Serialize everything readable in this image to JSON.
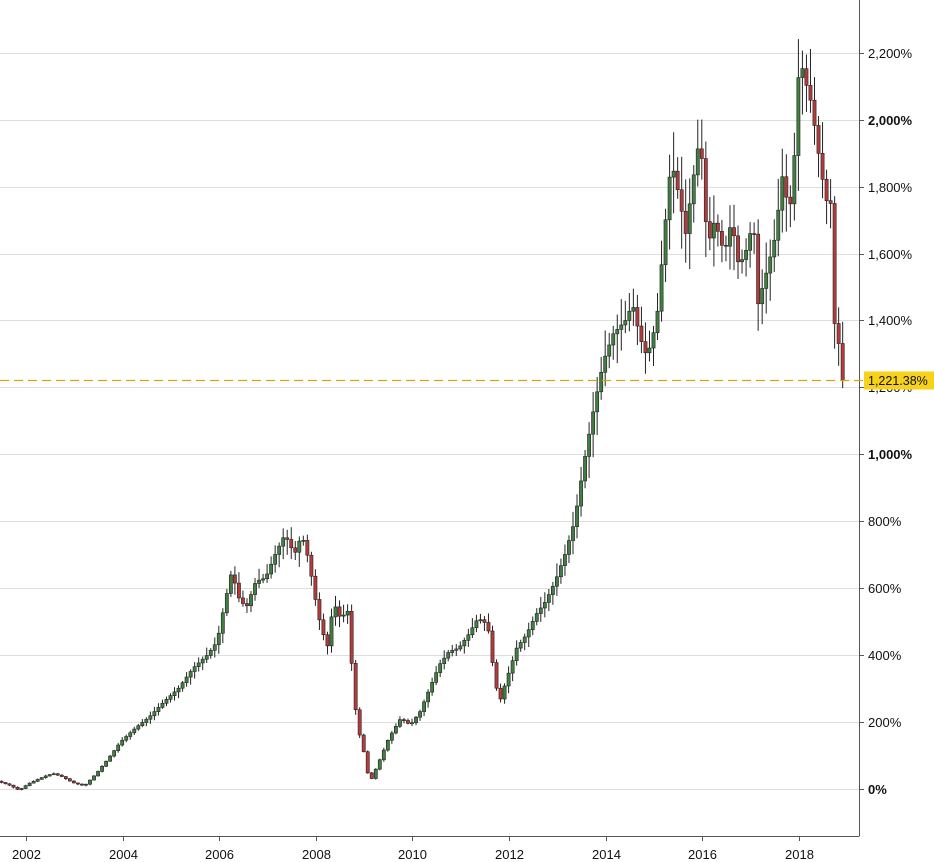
{
  "chart_data": {
    "type": "candlestick",
    "title": "",
    "xlabel": "",
    "ylabel": "",
    "x_axis": {
      "type": "time",
      "range": [
        2001.45,
        2019.4
      ],
      "tick_values": [
        2002,
        2004,
        2006,
        2008,
        2010,
        2012,
        2014,
        2016,
        2018
      ],
      "tick_labels": [
        "2002",
        "2004",
        "2006",
        "2008",
        "2010",
        "2012",
        "2014",
        "2016",
        "2018"
      ]
    },
    "y_axis": {
      "unit": "%",
      "side": "right",
      "range": [
        -150,
        2350
      ],
      "tick_values": [
        0,
        200,
        400,
        600,
        800,
        1000,
        1200,
        1400,
        1600,
        1800,
        2000,
        2200
      ],
      "tick_labels": [
        "0%",
        "200%",
        "400%",
        "600%",
        "800%",
        "1,000%",
        "1,200%",
        "1,400%",
        "1,600%",
        "1,800%",
        "2,000%",
        "2,200%"
      ],
      "bold_ticks": [
        0,
        1000,
        2000
      ]
    },
    "grid": "horizontal",
    "last_value": 1221.38,
    "last_value_label": "1,221.38%",
    "colors": {
      "up": "#3f7f3f",
      "down": "#b53a3a",
      "wick": "#222222",
      "last_line": "#d4a514",
      "last_label_bg": "#f7d21a",
      "grid": "#dedede"
    },
    "anchors": [
      [
        2001.45,
        22
      ],
      [
        2001.7,
        10
      ],
      [
        2001.9,
        -5
      ],
      [
        2002.1,
        15
      ],
      [
        2002.4,
        35
      ],
      [
        2002.6,
        45
      ],
      [
        2002.8,
        35
      ],
      [
        2003.0,
        18
      ],
      [
        2003.25,
        8
      ],
      [
        2003.5,
        45
      ],
      [
        2003.8,
        100
      ],
      [
        2004.0,
        140
      ],
      [
        2004.3,
        180
      ],
      [
        2004.6,
        215
      ],
      [
        2004.9,
        260
      ],
      [
        2005.2,
        300
      ],
      [
        2005.5,
        360
      ],
      [
        2005.8,
        400
      ],
      [
        2006.0,
        440
      ],
      [
        2006.15,
        550
      ],
      [
        2006.3,
        650
      ],
      [
        2006.45,
        570
      ],
      [
        2006.6,
        540
      ],
      [
        2006.8,
        620
      ],
      [
        2007.0,
        630
      ],
      [
        2007.2,
        700
      ],
      [
        2007.4,
        760
      ],
      [
        2007.6,
        700
      ],
      [
        2007.75,
        760
      ],
      [
        2007.9,
        680
      ],
      [
        2008.0,
        590
      ],
      [
        2008.15,
        480
      ],
      [
        2008.3,
        420
      ],
      [
        2008.4,
        560
      ],
      [
        2008.55,
        510
      ],
      [
        2008.7,
        530
      ],
      [
        2008.75,
        430
      ],
      [
        2008.9,
        180
      ],
      [
        2009.0,
        140
      ],
      [
        2009.1,
        50
      ],
      [
        2009.2,
        30
      ],
      [
        2009.35,
        80
      ],
      [
        2009.55,
        150
      ],
      [
        2009.8,
        210
      ],
      [
        2010.0,
        190
      ],
      [
        2010.2,
        230
      ],
      [
        2010.4,
        300
      ],
      [
        2010.6,
        370
      ],
      [
        2010.8,
        410
      ],
      [
        2011.0,
        420
      ],
      [
        2011.2,
        460
      ],
      [
        2011.4,
        510
      ],
      [
        2011.6,
        490
      ],
      [
        2011.75,
        320
      ],
      [
        2011.85,
        260
      ],
      [
        2012.0,
        330
      ],
      [
        2012.2,
        420
      ],
      [
        2012.4,
        460
      ],
      [
        2012.6,
        520
      ],
      [
        2012.8,
        560
      ],
      [
        2013.0,
        620
      ],
      [
        2013.2,
        700
      ],
      [
        2013.4,
        800
      ],
      [
        2013.6,
        980
      ],
      [
        2013.8,
        1140
      ],
      [
        2014.0,
        1280
      ],
      [
        2014.2,
        1360
      ],
      [
        2014.45,
        1400
      ],
      [
        2014.6,
        1450
      ],
      [
        2014.75,
        1350
      ],
      [
        2014.9,
        1290
      ],
      [
        2015.1,
        1400
      ],
      [
        2015.25,
        1650
      ],
      [
        2015.4,
        1880
      ],
      [
        2015.55,
        1780
      ],
      [
        2015.7,
        1660
      ],
      [
        2015.85,
        1820
      ],
      [
        2016.0,
        1960
      ],
      [
        2016.15,
        1620
      ],
      [
        2016.3,
        1700
      ],
      [
        2016.5,
        1600
      ],
      [
        2016.65,
        1700
      ],
      [
        2016.8,
        1560
      ],
      [
        2016.95,
        1610
      ],
      [
        2017.1,
        1700
      ],
      [
        2017.2,
        1450
      ],
      [
        2017.4,
        1560
      ],
      [
        2017.55,
        1650
      ],
      [
        2017.7,
        1830
      ],
      [
        2017.85,
        1720
      ],
      [
        2018.0,
        1980
      ],
      [
        2018.05,
        2200
      ],
      [
        2018.15,
        2130
      ],
      [
        2018.3,
        2050
      ],
      [
        2018.45,
        1900
      ],
      [
        2018.6,
        1760
      ],
      [
        2018.7,
        1750
      ],
      [
        2018.75,
        1410
      ],
      [
        2018.82,
        1370
      ],
      [
        2018.88,
        1320
      ],
      [
        2018.93,
        1221.38
      ]
    ]
  }
}
